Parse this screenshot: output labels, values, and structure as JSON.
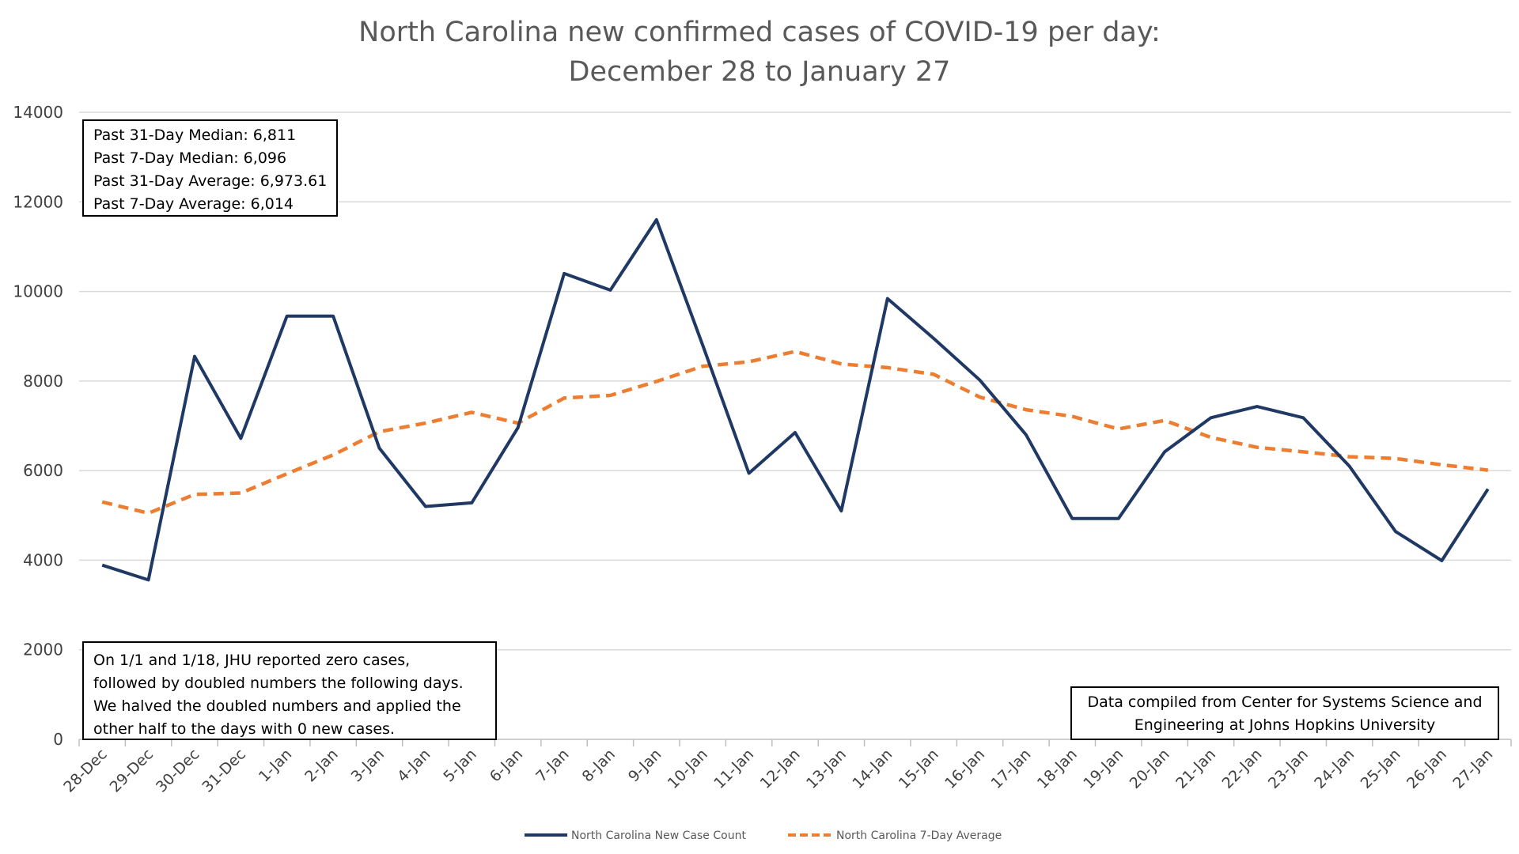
{
  "chart_data": {
    "type": "line",
    "title": "North Carolina new confirmed cases of COVID-19 per day:",
    "subtitle": "December 28 to January 27",
    "xlabel": "",
    "ylabel": "",
    "ylim": [
      0,
      14000
    ],
    "yticks": [
      0,
      2000,
      4000,
      6000,
      8000,
      10000,
      12000,
      14000
    ],
    "grid": true,
    "legend_position": "bottom",
    "categories": [
      "28-Dec",
      "29-Dec",
      "30-Dec",
      "31-Dec",
      "1-Jan",
      "2-Jan",
      "3-Jan",
      "4-Jan",
      "5-Jan",
      "6-Jan",
      "7-Jan",
      "8-Jan",
      "9-Jan",
      "10-Jan",
      "11-Jan",
      "12-Jan",
      "13-Jan",
      "14-Jan",
      "15-Jan",
      "16-Jan",
      "17-Jan",
      "18-Jan",
      "19-Jan",
      "20-Jan",
      "21-Jan",
      "22-Jan",
      "23-Jan",
      "24-Jan",
      "25-Jan",
      "26-Jan",
      "27-Jan"
    ],
    "series": [
      {
        "name": "North Carolina New Case Count",
        "color": "#1F3864",
        "style": "solid",
        "values": [
          3890,
          3560,
          8550,
          6720,
          9450,
          9450,
          6500,
          5200,
          5280,
          6960,
          10400,
          10030,
          11600,
          8800,
          5940,
          6850,
          5100,
          9840,
          8950,
          8020,
          6800,
          4930,
          4930,
          6420,
          7180,
          7430,
          7180,
          6100,
          4640,
          3990,
          5590
        ]
      },
      {
        "name": "North Carolina 7-Day Average",
        "color": "#ED7D31",
        "style": "dashed",
        "values": [
          5300,
          5050,
          5470,
          5500,
          5930,
          6350,
          6870,
          7060,
          7300,
          7060,
          7620,
          7680,
          7990,
          8330,
          8430,
          8660,
          8380,
          8300,
          8150,
          7640,
          7360,
          7210,
          6930,
          7120,
          6740,
          6520,
          6420,
          6310,
          6270,
          6130,
          6010
        ]
      }
    ]
  },
  "annotations": {
    "stats": [
      "Past 31-Day Median: 6,811",
      "Past 7-Day Median: 6,096",
      "Past 31-Day Average: 6,973.61",
      "Past 7-Day Average: 6,014"
    ],
    "note": [
      "On 1/1 and 1/18, JHU reported zero cases,",
      "followed by doubled numbers the following days.",
      "We halved the doubled numbers and applied the",
      "other half to the days with 0 new cases."
    ],
    "source": [
      "Data compiled from Center for Systems Science and",
      "Engineering at Johns Hopkins University"
    ]
  }
}
